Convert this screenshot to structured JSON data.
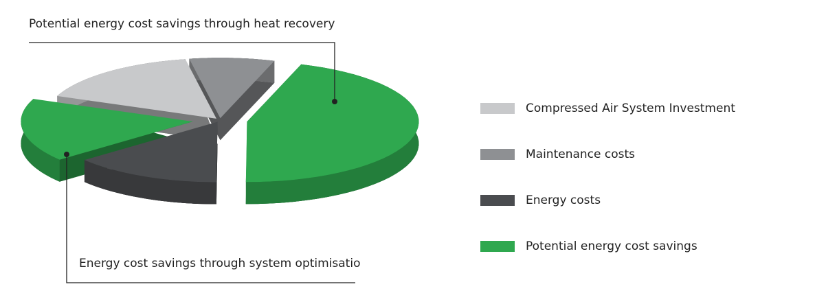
{
  "chart_data": {
    "type": "pie3d",
    "series": [
      {
        "name": "Compressed Air System Investment",
        "color": "#c8c9cb",
        "values": [
          16
        ]
      },
      {
        "name": "Maintenance costs",
        "color": "#8e9093",
        "values": [
          8
        ]
      },
      {
        "name": "Energy costs",
        "color": "#4a4c4f",
        "values": [
          14
        ]
      },
      {
        "name": "Potential energy cost savings",
        "color": "#2fa84f",
        "values": [
          45,
          17
        ],
        "annotations": [
          "Potential energy cost savings through heat recovery",
          "Energy cost savings through system optimisatio"
        ]
      }
    ]
  }
}
